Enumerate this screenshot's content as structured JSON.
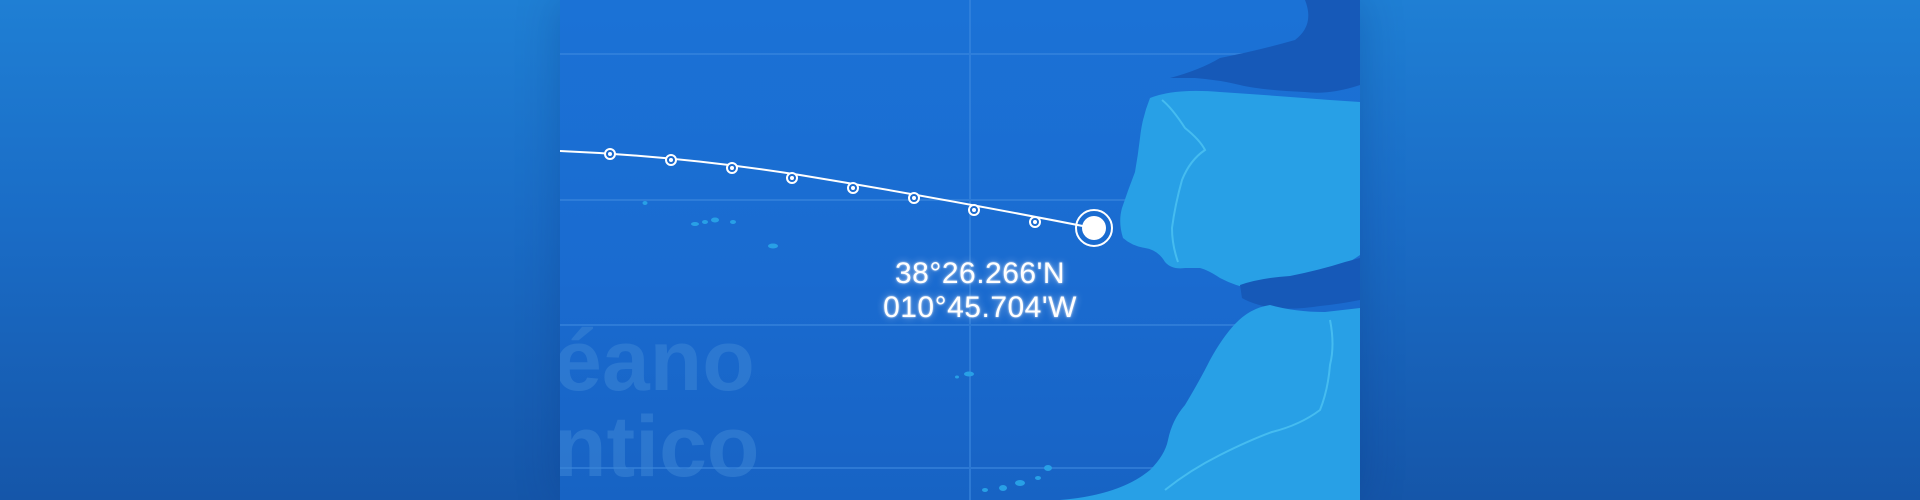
{
  "map": {
    "ocean_label_line1": "éano",
    "ocean_label_line2": "ntico",
    "coordinates": {
      "latitude": "38°26.266'N",
      "longitude": "010°45.704'W"
    }
  },
  "colors": {
    "background": "#1a6cc6",
    "water": "#1a6bd0",
    "land": "#28a0e6",
    "dark_land": "#1659b8",
    "route": "#ffffff",
    "grid": "#3f8be0"
  }
}
